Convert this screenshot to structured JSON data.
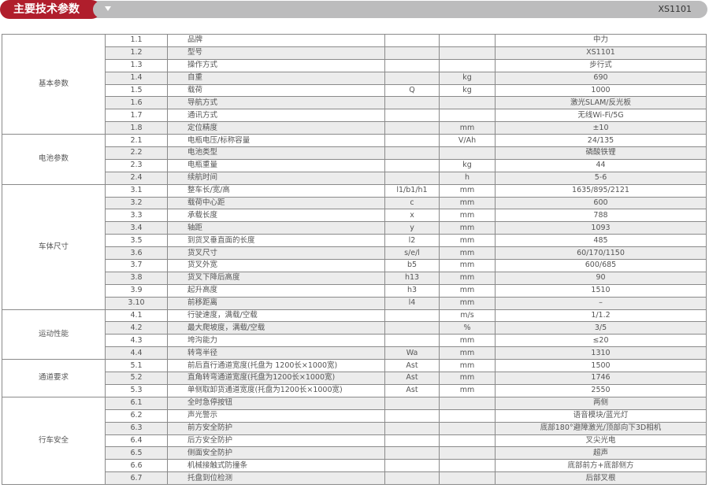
{
  "header": {
    "title": "主要技术参数",
    "model": "XS1101",
    "accent_color": "#b01e2c",
    "dropdown_icon": "triangle-down"
  },
  "groups": [
    {
      "category": "基本参数",
      "rows": [
        [
          "1.1",
          "品牌",
          "",
          "",
          "中力"
        ],
        [
          "1.2",
          "型号",
          "",
          "",
          "XS1101"
        ],
        [
          "1.3",
          "操作方式",
          "",
          "",
          "步行式"
        ],
        [
          "1.4",
          "自重",
          "",
          "kg",
          "690"
        ],
        [
          "1.5",
          "载荷",
          "Q",
          "kg",
          "1000"
        ],
        [
          "1.6",
          "导航方式",
          "",
          "",
          "激光SLAM/反光板"
        ],
        [
          "1.7",
          "通讯方式",
          "",
          "",
          "无线Wi-Fi/5G"
        ],
        [
          "1.8",
          "定位精度",
          "",
          "mm",
          "±10"
        ]
      ]
    },
    {
      "category": "电池参数",
      "rows": [
        [
          "2.1",
          "电瓶电压/标称容量",
          "",
          "V/Ah",
          "24/135"
        ],
        [
          "2.2",
          "电池类型",
          "",
          "",
          "磷酸铁锂"
        ],
        [
          "2.3",
          "电瓶重量",
          "",
          "kg",
          "44"
        ],
        [
          "2.4",
          "续航时间",
          "",
          "h",
          "5-6"
        ]
      ]
    },
    {
      "category": "车体尺寸",
      "rows": [
        [
          "3.1",
          "整车长/宽/高",
          "l1/b1/h1",
          "mm",
          "1635/895/2121"
        ],
        [
          "3.2",
          "载荷中心距",
          "c",
          "mm",
          "600"
        ],
        [
          "3.3",
          "承载长度",
          "x",
          "mm",
          "788"
        ],
        [
          "3.4",
          "轴距",
          "y",
          "mm",
          "1093"
        ],
        [
          "3.5",
          "到货叉垂直面的长度",
          "l2",
          "mm",
          "485"
        ],
        [
          "3.6",
          "货叉尺寸",
          "s/e/l",
          "mm",
          "60/170/1150"
        ],
        [
          "3.7",
          "货叉外宽",
          "b5",
          "mm",
          "600/685"
        ],
        [
          "3.8",
          "货叉下降后高度",
          "h13",
          "mm",
          "90"
        ],
        [
          "3.9",
          "起升高度",
          "h3",
          "mm",
          "1510"
        ],
        [
          "3.10",
          "前移距离",
          "l4",
          "mm",
          "–"
        ]
      ]
    },
    {
      "category": "运动性能",
      "rows": [
        [
          "4.1",
          "行驶速度，满载/空载",
          "",
          "m/s",
          "1/1.2"
        ],
        [
          "4.2",
          "最大爬坡度，满载/空载",
          "",
          "%",
          "3/5"
        ],
        [
          "4.3",
          "垮沟能力",
          "",
          "mm",
          "≤20"
        ],
        [
          "4.4",
          "转弯半径",
          "Wa",
          "mm",
          "1310"
        ]
      ]
    },
    {
      "category": "通道要求",
      "rows": [
        [
          "5.1",
          "前后直行通道宽度(托盘为 1200长×1000宽)",
          "Ast",
          "mm",
          "1500"
        ],
        [
          "5.2",
          "直角转弯通道宽度(托盘为1200长×1000宽)",
          "Ast",
          "mm",
          "1746"
        ],
        [
          "5.3",
          "单侧取卸货通道宽度(托盘为1200长×1000宽)",
          "Ast",
          "mm",
          "2550"
        ]
      ]
    },
    {
      "category": "行车安全",
      "rows": [
        [
          "6.1",
          "全时急停按钮",
          "",
          "",
          "两侧"
        ],
        [
          "6.2",
          "声光警示",
          "",
          "",
          "语音模块/蓝光灯"
        ],
        [
          "6.3",
          "前方安全防护",
          "",
          "",
          "底部180°避障激光/顶部向下3D相机"
        ],
        [
          "6.4",
          "后方安全防护",
          "",
          "",
          "叉尖光电"
        ],
        [
          "6.5",
          "侧面安全防护",
          "",
          "",
          "超声"
        ],
        [
          "6.6",
          "机械接触式防撞条",
          "",
          "",
          "底部前方+底部侧方"
        ],
        [
          "6.7",
          "托盘到位检测",
          "",
          "",
          "后部叉根"
        ]
      ]
    }
  ]
}
